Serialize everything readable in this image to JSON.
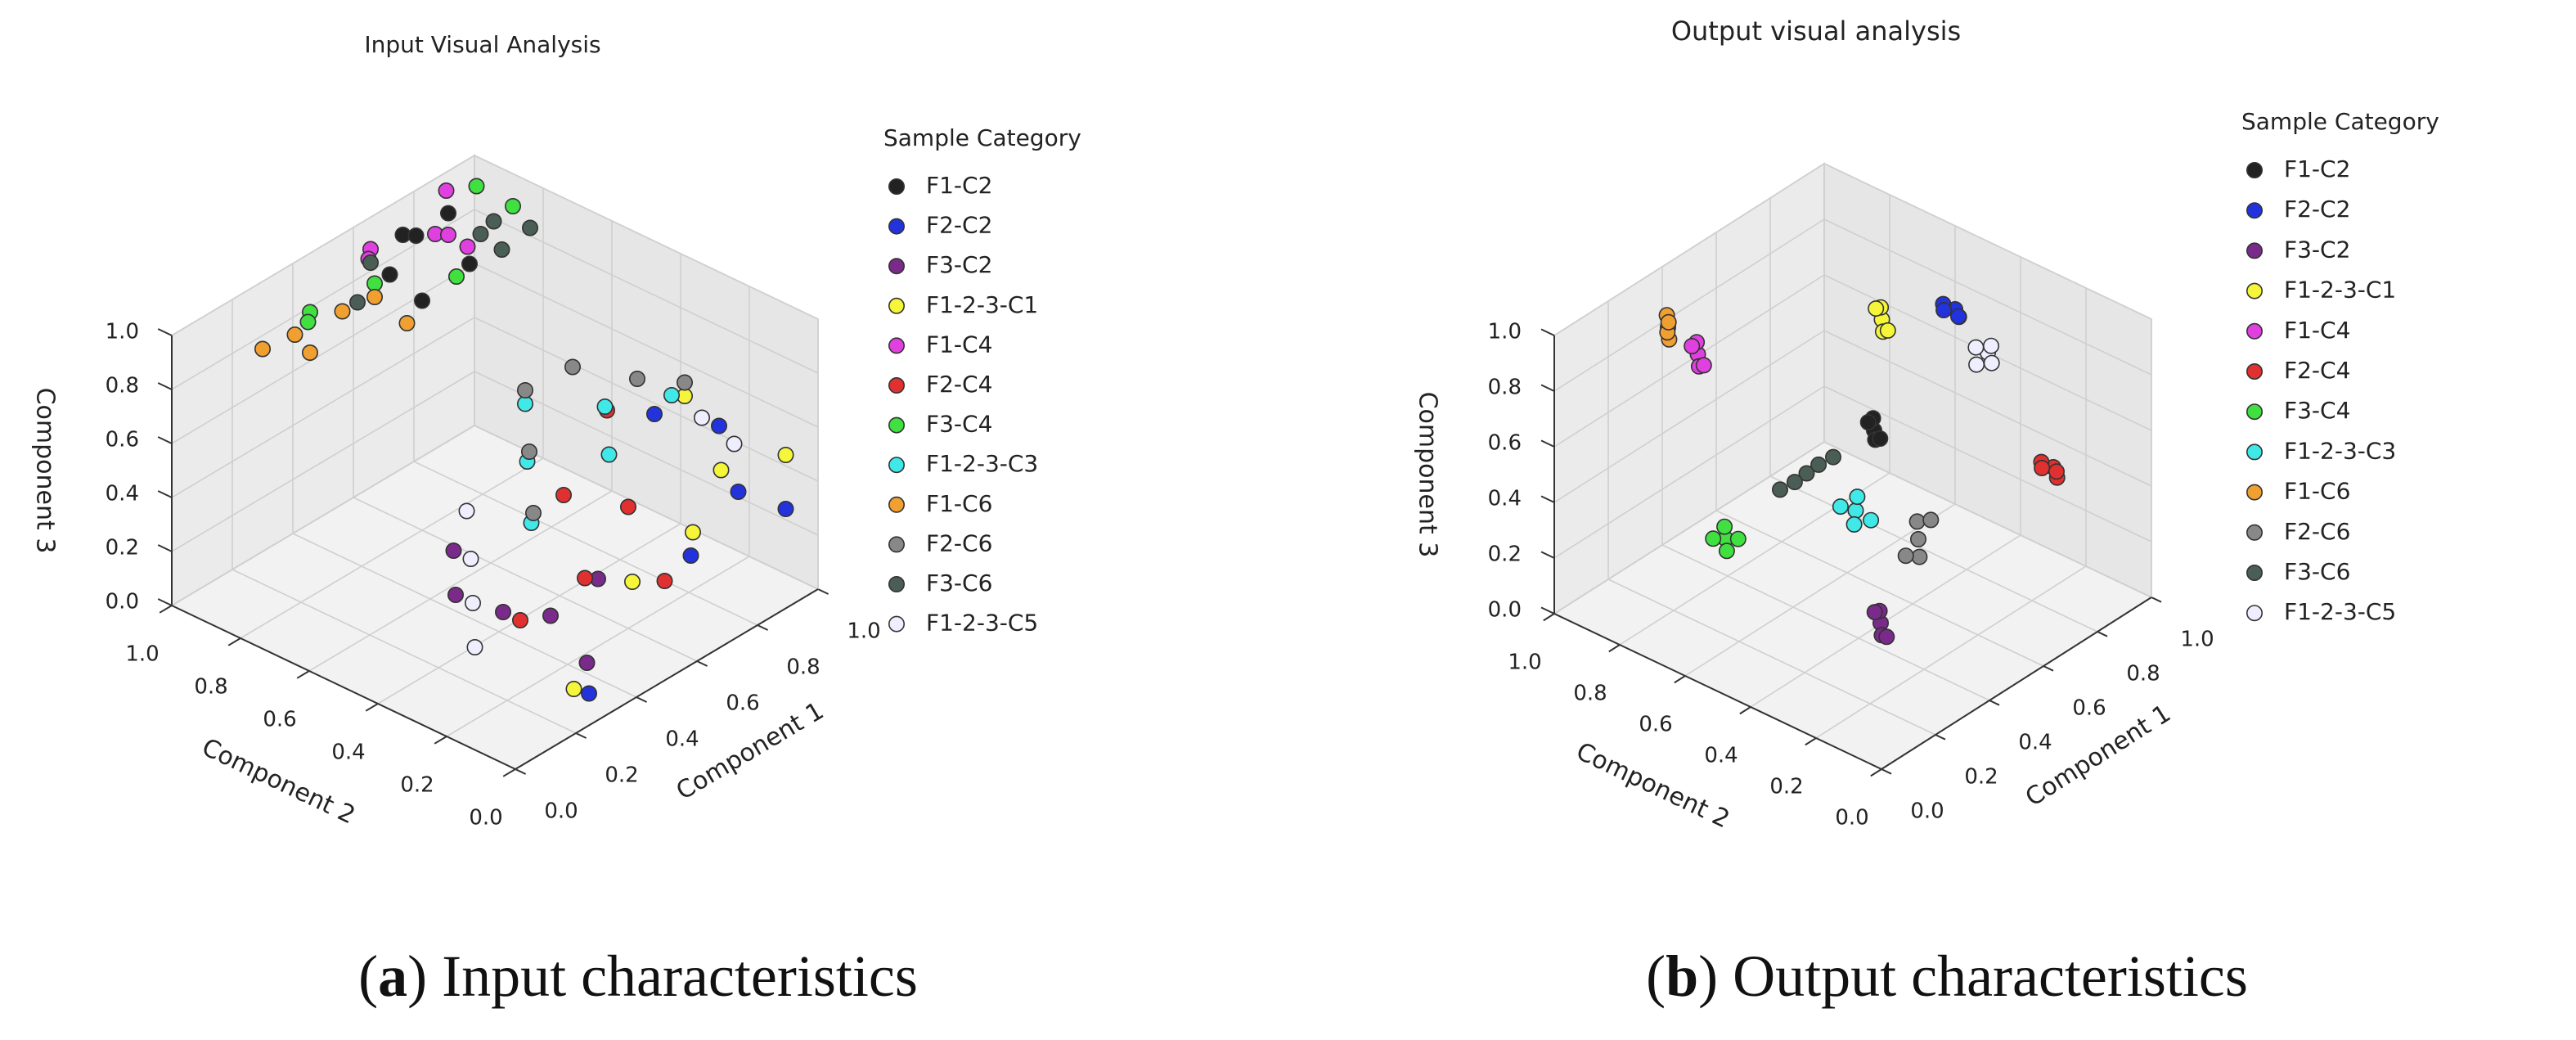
{
  "chart_data": [
    {
      "type": "scatter3d",
      "title": "Input Visual Analysis",
      "xlabel": "Component 1",
      "ylabel": "Component 2",
      "zlabel": "Component 3",
      "legend_title": "Sample Category",
      "xlim": [
        0,
        1
      ],
      "ylim": [
        0,
        1
      ],
      "zlim": [
        0,
        1
      ],
      "xticks": [
        {
          "value": 0,
          "label": "0.0"
        },
        {
          "value": 0.2,
          "label": "0.2"
        },
        {
          "value": 0.4,
          "label": "0.4"
        },
        {
          "value": 0.6,
          "label": "0.6"
        },
        {
          "value": 0.8,
          "label": "0.8"
        },
        {
          "value": 1,
          "label": "1.0"
        }
      ],
      "yticks": [
        {
          "value": 0,
          "label": "0.0"
        },
        {
          "value": 0.2,
          "label": "0.2"
        },
        {
          "value": 0.4,
          "label": "0.4"
        },
        {
          "value": 0.6,
          "label": "0.6"
        },
        {
          "value": 0.8,
          "label": "0.8"
        },
        {
          "value": 1,
          "label": "1.0"
        }
      ],
      "zticks": [
        {
          "value": 0,
          "label": "0.0"
        },
        {
          "value": 0.2,
          "label": "0.2"
        },
        {
          "value": 0.4,
          "label": "0.4"
        },
        {
          "value": 0.6,
          "label": "0.6"
        },
        {
          "value": 0.8,
          "label": "0.8"
        },
        {
          "value": 1,
          "label": "1.0"
        }
      ],
      "series": [
        {
          "name": "F1-C2",
          "color": "#222222",
          "x": [
            0.55,
            0.65,
            0.75,
            0.6,
            0.8,
            0.7
          ],
          "y": [
            0.85,
            0.9,
            0.95,
            0.8,
            0.9,
            0.75
          ],
          "z": [
            0.95,
            1.0,
            0.9,
            0.85,
            0.98,
            0.95
          ]
        },
        {
          "name": "F2-C2",
          "color": "#2233dd",
          "x": [
            0.85,
            0.9,
            0.95,
            0.8,
            0.75,
            0.3
          ],
          "y": [
            0.1,
            0.2,
            0.05,
            0.3,
            0.15,
            0.05
          ],
          "z": [
            0.4,
            0.55,
            0.3,
            0.6,
            0.2,
            0.05
          ]
        },
        {
          "name": "F3-C2",
          "color": "#7a2a8a",
          "x": [
            0.3,
            0.4,
            0.2,
            0.5,
            0.35,
            0.25
          ],
          "y": [
            0.3,
            0.25,
            0.35,
            0.2,
            0.1,
            0.4
          ],
          "z": [
            0.2,
            0.15,
            0.3,
            0.25,
            0.1,
            0.4
          ]
        },
        {
          "name": "F1-2-3-C1",
          "color": "#f5f53a",
          "x": [
            0.95,
            0.85,
            0.7,
            0.5,
            0.25,
            0.9
          ],
          "y": [
            0.05,
            0.15,
            0.1,
            0.1,
            0.05,
            0.3
          ],
          "z": [
            0.5,
            0.45,
            0.35,
            0.3,
            0.1,
            0.6
          ]
        },
        {
          "name": "F1-C4",
          "color": "#e040e0",
          "x": [
            0.6,
            0.7,
            0.8,
            0.65,
            0.75,
            0.85
          ],
          "y": [
            0.95,
            0.85,
            0.9,
            1.0,
            0.8,
            0.95
          ],
          "z": [
            0.95,
            1.0,
            0.9,
            0.85,
            0.95,
            1.0
          ]
        },
        {
          "name": "F2-C4",
          "color": "#e03030",
          "x": [
            0.6,
            0.5,
            0.4,
            0.7,
            0.3,
            0.55
          ],
          "y": [
            0.2,
            0.3,
            0.15,
            0.35,
            0.25,
            0.05
          ],
          "z": [
            0.45,
            0.5,
            0.35,
            0.65,
            0.2,
            0.3
          ]
        },
        {
          "name": "F3-C4",
          "color": "#40e040",
          "x": [
            0.4,
            0.5,
            0.9,
            0.95,
            0.45,
            0.6
          ],
          "y": [
            0.95,
            0.85,
            0.8,
            0.95,
            1.0,
            0.7
          ],
          "z": [
            0.85,
            0.95,
            1.0,
            0.95,
            0.75,
            1.0
          ]
        },
        {
          "name": "F1-2-3-C3",
          "color": "#40e8e8",
          "x": [
            0.65,
            0.75,
            0.55,
            0.45,
            0.8,
            0.6
          ],
          "y": [
            0.3,
            0.4,
            0.45,
            0.35,
            0.25,
            0.5
          ],
          "z": [
            0.55,
            0.6,
            0.5,
            0.4,
            0.7,
            0.65
          ]
        },
        {
          "name": "F1-C6",
          "color": "#f0a030",
          "x": [
            0.35,
            0.45,
            0.3,
            0.5,
            0.4,
            0.55
          ],
          "y": [
            0.95,
            0.9,
            1.0,
            0.85,
            0.95,
            0.8
          ],
          "z": [
            0.8,
            0.85,
            0.75,
            0.9,
            0.7,
            0.8
          ]
        },
        {
          "name": "F2-C6",
          "color": "#888888",
          "x": [
            0.8,
            0.7,
            0.6,
            0.9,
            0.5,
            0.4
          ],
          "y": [
            0.35,
            0.45,
            0.5,
            0.3,
            0.4,
            0.3
          ],
          "z": [
            0.7,
            0.75,
            0.7,
            0.65,
            0.6,
            0.5
          ]
        },
        {
          "name": "F3-C6",
          "color": "#4a5e55",
          "x": [
            0.85,
            0.9,
            0.75,
            0.95,
            0.5,
            0.6
          ],
          "y": [
            0.85,
            0.75,
            0.7,
            0.9,
            0.9,
            0.95
          ],
          "z": [
            0.9,
            0.95,
            1.0,
            0.85,
            0.85,
            0.9
          ]
        },
        {
          "name": "F1-2-3-C5",
          "color": "#eeeeff",
          "x": [
            0.2,
            0.25,
            0.15,
            0.9,
            0.95,
            0.35
          ],
          "y": [
            0.3,
            0.35,
            0.25,
            0.25,
            0.2,
            0.45
          ],
          "z": [
            0.3,
            0.4,
            0.2,
            0.55,
            0.45,
            0.45
          ]
        }
      ]
    },
    {
      "type": "scatter3d",
      "title": "Output visual analysis",
      "xlabel": "Component 1",
      "ylabel": "Component 2",
      "zlabel": "Component 3",
      "legend_title": "Sample Category",
      "xlim": [
        0,
        1
      ],
      "ylim": [
        0,
        1
      ],
      "zlim": [
        0,
        1
      ],
      "xticks": [
        {
          "value": 0,
          "label": "0.0"
        },
        {
          "value": 0.2,
          "label": "0.2"
        },
        {
          "value": 0.4,
          "label": "0.4"
        },
        {
          "value": 0.6,
          "label": "0.6"
        },
        {
          "value": 0.8,
          "label": "0.8"
        },
        {
          "value": 1,
          "label": "1.0"
        }
      ],
      "yticks": [
        {
          "value": 0,
          "label": "0.0"
        },
        {
          "value": 0.2,
          "label": "0.2"
        },
        {
          "value": 0.4,
          "label": "0.4"
        },
        {
          "value": 0.6,
          "label": "0.6"
        },
        {
          "value": 0.8,
          "label": "0.8"
        },
        {
          "value": 1,
          "label": "1.0"
        }
      ],
      "zticks": [
        {
          "value": 0,
          "label": "0.0"
        },
        {
          "value": 0.2,
          "label": "0.2"
        },
        {
          "value": 0.4,
          "label": "0.4"
        },
        {
          "value": 0.6,
          "label": "0.6"
        },
        {
          "value": 0.8,
          "label": "0.8"
        },
        {
          "value": 1,
          "label": "1.0"
        }
      ],
      "series": [
        {
          "name": "F1-C2",
          "color": "#222222",
          "x": [
            0.7,
            0.72,
            0.68,
            0.71,
            0.69
          ],
          "y": [
            0.6,
            0.62,
            0.58,
            0.59,
            0.61
          ],
          "z": [
            0.45,
            0.47,
            0.44,
            0.42,
            0.48
          ]
        },
        {
          "name": "F2-C2",
          "color": "#2233dd",
          "x": [
            1.0,
            0.98,
            0.99,
            0.97,
            1.0
          ],
          "y": [
            0.6,
            0.62,
            0.58,
            0.61,
            0.59
          ],
          "z": [
            0.7,
            0.72,
            0.69,
            0.71,
            0.68
          ]
        },
        {
          "name": "F3-C2",
          "color": "#7a2a8a",
          "x": [
            0.3,
            0.32,
            0.28,
            0.31,
            0.29
          ],
          "y": [
            0.25,
            0.27,
            0.23,
            0.24,
            0.26
          ],
          "z": [
            0.2,
            0.22,
            0.18,
            0.15,
            0.24
          ]
        },
        {
          "name": "F1-2-3-C1",
          "color": "#f5f53a",
          "x": [
            0.85,
            0.87,
            0.83,
            0.86,
            0.84
          ],
          "y": [
            0.7,
            0.72,
            0.68,
            0.69,
            0.71
          ],
          "z": [
            0.7,
            0.72,
            0.68,
            0.66,
            0.74
          ]
        },
        {
          "name": "F1-C4",
          "color": "#e040e0",
          "x": [
            0.35,
            0.37,
            0.33,
            0.36,
            0.34
          ],
          "y": [
            0.85,
            0.87,
            0.83,
            0.84,
            0.86
          ],
          "z": [
            0.8,
            0.82,
            0.78,
            0.76,
            0.83
          ]
        },
        {
          "name": "F2-C4",
          "color": "#e03030",
          "x": [
            1.0,
            0.98,
            0.99,
            0.97,
            1.0
          ],
          "y": [
            0.3,
            0.32,
            0.28,
            0.31,
            0.29
          ],
          "z": [
            0.3,
            0.32,
            0.28,
            0.31,
            0.29
          ]
        },
        {
          "name": "F3-C4",
          "color": "#40e040",
          "x": [
            0.15,
            0.17,
            0.13,
            0.16,
            0.14
          ],
          "y": [
            0.6,
            0.62,
            0.58,
            0.57,
            0.63
          ],
          "z": [
            0.4,
            0.42,
            0.38,
            0.41,
            0.39
          ]
        },
        {
          "name": "F1-2-3-C3",
          "color": "#40e8e8",
          "x": [
            0.45,
            0.48,
            0.42,
            0.47,
            0.43
          ],
          "y": [
            0.45,
            0.47,
            0.43,
            0.42,
            0.48
          ],
          "z": [
            0.4,
            0.42,
            0.38,
            0.37,
            0.41
          ]
        },
        {
          "name": "F1-C6",
          "color": "#f0a030",
          "x": [
            0.3,
            0.32,
            0.28,
            0.31,
            0.29
          ],
          "y": [
            0.9,
            0.92,
            0.88,
            0.91,
            0.89
          ],
          "z": [
            0.9,
            0.92,
            0.88,
            0.87,
            0.93
          ]
        },
        {
          "name": "F2-C6",
          "color": "#888888",
          "x": [
            0.5,
            0.52,
            0.48,
            0.51,
            0.49
          ],
          "y": [
            0.3,
            0.32,
            0.28,
            0.27,
            0.33
          ],
          "z": [
            0.35,
            0.39,
            0.31,
            0.43,
            0.28
          ]
        },
        {
          "name": "F3-C6",
          "color": "#4a5e55",
          "x": [
            0.45,
            0.43,
            0.47,
            0.4,
            0.5
          ],
          "y": [
            0.6,
            0.62,
            0.58,
            0.64,
            0.56
          ],
          "z": [
            0.45,
            0.42,
            0.48,
            0.4,
            0.5
          ]
        },
        {
          "name": "F1-2-3-C5",
          "color": "#eeeeff",
          "x": [
            1.0,
            0.98,
            0.99,
            0.97,
            1.0
          ],
          "y": [
            0.5,
            0.52,
            0.48,
            0.51,
            0.49
          ],
          "z": [
            0.6,
            0.62,
            0.58,
            0.57,
            0.63
          ]
        }
      ]
    }
  ],
  "captions": [
    {
      "open": "(",
      "label": "a",
      "text": ") Input characteristics"
    },
    {
      "open": "(",
      "label": "b",
      "text": ") Output characteristics"
    }
  ]
}
